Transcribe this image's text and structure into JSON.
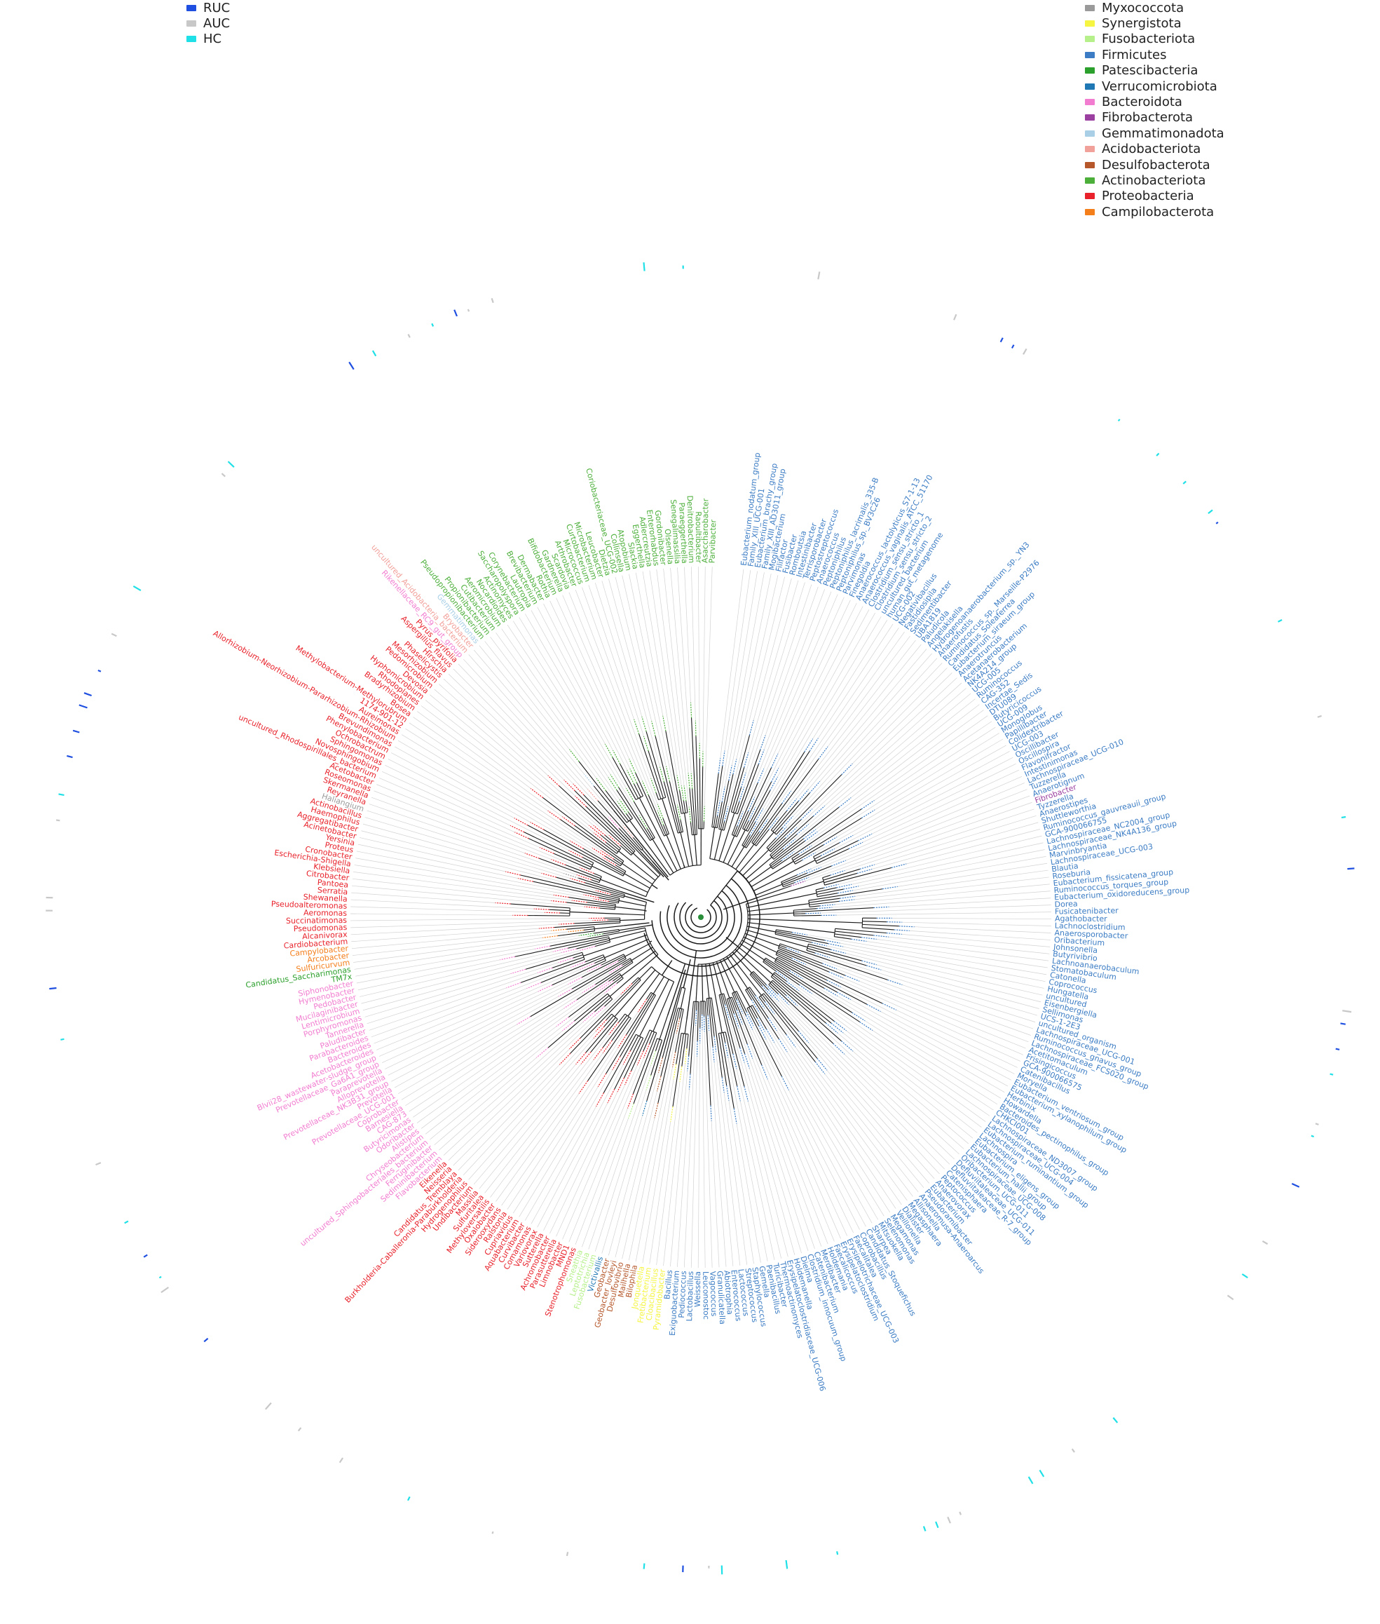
{
  "sample_legend": [
    {
      "label": "RUC",
      "color": "#1e4fe0"
    },
    {
      "label": "AUC",
      "color": "#c8c8c8"
    },
    {
      "label": "HC",
      "color": "#1ee0e6"
    }
  ],
  "phylum_legend": [
    {
      "label": "Myxococcota",
      "color": "#9a9a9a"
    },
    {
      "label": "Synergistota",
      "color": "#f5f542"
    },
    {
      "label": "Fusobacteriota",
      "color": "#b6f08a"
    },
    {
      "label": "Firmicutes",
      "color": "#3b7cc4"
    },
    {
      "label": "Patescibacteria",
      "color": "#2ca02c"
    },
    {
      "label": "Verrucomicrobiota",
      "color": "#1f77b4"
    },
    {
      "label": "Bacteroidota",
      "color": "#f27dd0"
    },
    {
      "label": "Fibrobacterota",
      "color": "#9b3fa0"
    },
    {
      "label": "Gemmatimonadota",
      "color": "#a9cfe6"
    },
    {
      "label": "Acidobacteriota",
      "color": "#f2a09a"
    },
    {
      "label": "Desulfobacterota",
      "color": "#b5572a"
    },
    {
      "label": "Actinobacteriota",
      "color": "#4caf3a"
    },
    {
      "label": "Proteobacteria",
      "color": "#e8212a"
    },
    {
      "label": "Campilobacterota",
      "color": "#f47e1a"
    }
  ],
  "taxa": [
    {
      "p": "Firmicutes",
      "names": [
        "Eubacterium_nodatum_group",
        "Family_XIII_UCG-001",
        "Eubacterium_brachy_group",
        "Family_XIII_AD3011_group",
        "Mogibacterium",
        "Filifactor",
        "Fusibacter",
        "Romboutsia",
        "Intestinibacter",
        "Terrisporobacter",
        "Peptostreptococcus",
        "Anaerococcus",
        "Peptoniphilus",
        "Peptoniphilus_lacrimalis_335-B",
        "Peptoniphilus_sp._BV3C26",
        "Parvimonas",
        "Finegoldia",
        "Anaerococcus_lactolyticus_S7-1-13",
        "Anaerococcus_vaginalis_ATCC_51170",
        "Clostridium_sensu_stricto_1",
        "Clostridium_sensu_stricto_2",
        "uncultured_bacterium",
        "human_gut_metagenome",
        "UCG-002",
        "Negativibacillus",
        "Fastidiosipila",
        "Sedimentibacter",
        "UBA1819",
        "Paludicola",
        "Angelakisella",
        "Hydrogenoanaerobacterium_sp._YN3",
        "Anaerofustis",
        "Ruminococcus_sp._Marseille-P2976",
        "Candidatus_Soleaferrea",
        "Eubacterium_siraeum_group",
        "Anaerotruncus",
        "Acetanaerobacterium",
        "NK4A214_group",
        "UCG-005",
        "Ruminococcus",
        "CAG-352",
        "Incertae_Sedis",
        "DTU089",
        "Butyricicoccus",
        "UCG-009",
        "Monoglobus",
        "Papillibacter",
        "Colidextribacter",
        "UCG-003",
        "Oscillibacter",
        "Oscillospira",
        "Flavonifractor",
        "Intestinimonas",
        "Lachnospiraceae_UCG-010",
        "Tuzzerella",
        "Anaerotignum"
      ]
    },
    {
      "p": "Fibrobacterota",
      "names": [
        "Fibrobacter"
      ]
    },
    {
      "p": "Firmicutes",
      "names": [
        "Tyzzerella",
        "Anaerostipes",
        "Shuttleworthia",
        "Ruminococcus_gauvreauii_group",
        "GCA-900066755",
        "Lachnospiraceae_NC2004_group",
        "Lachnospiraceae_NK4A136_group",
        "Marvinbryantia",
        "Lachnospiraceae_UCG-003",
        "Blautia",
        "Roseburia",
        "Eubacterium_fissicatena_group",
        "Ruminococcus_torques_group",
        "Eubacterium_oxidoreducens_group",
        "Dorea",
        "Fusicatenibacter",
        "Agathobacter",
        "Lachnoclostridium",
        "Anaerosporobacter",
        "Oribacterium",
        "Johnsonella",
        "Butyrivibrio",
        "Lachnoanaerobaculum",
        "Stomatobaculum",
        "Catonella",
        "Coprococcus",
        "Hungatella",
        "uncultured",
        "Eisenbergiella",
        "Sellimonas",
        "UCS-1-2E3",
        "uncultured_organism",
        "Lachnospiraceae_UCG-001",
        "Ruminococcus_gnavus_group",
        "Lachnospiraceae_FCS020_group",
        "Acetitomaculum",
        "Frisingicoccus",
        "GCA-900066575",
        "Catenibacillus",
        "Moryella",
        "Eubacterium_ventriosum_group",
        "Eubacterium_xylanophilum_group",
        "Herbinix",
        "Howardella",
        "Bacteroides_pectinophilus_group",
        "CHKCI001",
        "Lachnospiraceae_ND3007_group",
        "Lachnospiraceae_UCG-004",
        "Eubacterium_ruminantium_group",
        "Lachnospira",
        "Eubacterium_eligens_group",
        "Eubacterium_hallii_group",
        "Lachnospiraceae_UCG-008",
        "Oribacterium_UCG-011",
        "Defluviitaleaceae_UCG-011",
        "Defluviitaleaceae_R-7_group",
        "Catenisphaera",
        "Peptococcus",
        "Anaerovorax",
        "Eubacterium",
        "Pseudoramibacter",
        "Anaeromusa-Anaeroarcus",
        "Allisonella",
        "Megasphaera",
        "Dialister",
        "Veillonella",
        "Megamonas",
        "Selenomonas",
        "Mitsuokella",
        "Sharpea",
        "Candidatus_Stoquefichus",
        "Coprobacillus",
        "Faecalitalea",
        "Erysipelotrichaceae_UCG-003",
        "Erysipelatoclostridium",
        "Faecalicoccus",
        "Holdemania",
        "Merdibacter",
        "Catenibacterium",
        "Clostridium_innocuum_group",
        "Dielma",
        "Holdemanella",
        "Erysipelatoclostridiaceae_UCG-006",
        "Thermoactinomyces",
        "Turicibacter",
        "Paenibacillus",
        "Gemella",
        "Staphylococcus",
        "Streptococcus",
        "Lactococcus",
        "Enterococcus",
        "Abiotrophia",
        "Granulicatella",
        "Vagococcus",
        "Leuconostoc",
        "Weissella",
        "Lactobacillus",
        "Pediococcus",
        "Exiguobacterium",
        "Bacillus"
      ]
    },
    {
      "p": "Synergistota",
      "names": [
        "Pyramidobacter",
        "Cloacibacillus",
        "Fretibacterium",
        "Jonquetella"
      ]
    },
    {
      "p": "Desulfobacterota",
      "names": [
        "Bilophila",
        "Mailhella",
        "Desulfovibrio",
        "Geobacter_lovleyi",
        "Geobacter"
      ]
    },
    {
      "p": "Verrucomicrobiota",
      "names": [
        "Victivallis"
      ]
    },
    {
      "p": "Fusobacteriota",
      "names": [
        "Fusobacterium",
        "Leptotrichia",
        "Sneathia"
      ]
    },
    {
      "p": "Proteobacteria",
      "names": [
        "Stenotrophomonas",
        "MND1",
        "Limnobacter",
        "Parasutterella",
        "Achromobacter",
        "Sutterella",
        "Variovorax",
        "Comamonas",
        "Curvibacter",
        "Aquabacterium",
        "Cupriavidus",
        "Ralstonia",
        "Siderooxydans",
        "Oxalobacter",
        "Methyloversatilis",
        "Sulfuritalea",
        "Massilia",
        "Undibacterium",
        "Hydrogenophilus",
        "Burkholderia-Caballeronia-Paraburkholderia",
        "Candidatus_Tremblaya",
        "Neisseria",
        "Eikenella"
      ]
    },
    {
      "p": "Bacteroidota",
      "names": [
        "Flavobacterium",
        "Sediminibacterium",
        "Ferruginibacter",
        "uncultured_Sphingobacteriales_bacterium",
        "Chryseobacterium",
        "Alistipes",
        "Odoribacter",
        "Butyricimonas",
        "CAG-873",
        "Barnesiella",
        "Coprobacter",
        "Prevotellaceae_UCG-001",
        "Prevotella",
        "Prevotellaceae_NK3B31_group",
        "Alloprevotella",
        "Paraprevotella",
        "Prevotellaceae_Ga6A1_group",
        "Blvii28_wastewater-sludge_group",
        "Acetobacteroides",
        "Bacteroides",
        "Parabacteroides",
        "Paludibacter",
        "Tannerella",
        "Porphyromonas",
        "Lentimicrobium",
        "Mucilaginibacter",
        "Pedobacter",
        "Hymenobacter",
        "Siphonobacter"
      ]
    },
    {
      "p": "Patescibacteria",
      "names": [
        "TM7x",
        "Candidatus_Saccharimonas"
      ]
    },
    {
      "p": "Campilobacterota",
      "names": [
        "Sulfuricurvum",
        "Arcobacter",
        "Campylobacter"
      ]
    },
    {
      "p": "Proteobacteria",
      "names": [
        "Cardiobacterium",
        "Alcanivorax",
        "Pseudomonas",
        "Succinatimonas",
        "Aeromonas",
        "Pseudoalteromonas",
        "Shewanella",
        "Serratia",
        "Pantoea",
        "Citrobacter",
        "Klebsiella",
        "Escherichia-Shigella",
        "Cronobacter",
        "Proteus",
        "Yersinia",
        "Acinetobacter",
        "Aggregatibacter",
        "Haemophilus",
        "Actinobacillus"
      ]
    },
    {
      "p": "Myxococcota",
      "names": [
        "Haliangium"
      ]
    },
    {
      "p": "Proteobacteria",
      "names": [
        "Reyranella",
        "Skermanella",
        "Roseomonas",
        "Acetobacter",
        "uncultured_Rhodospirillales_bacterium",
        "Novosphingobium",
        "Sphingomonas",
        "Ochrobactrum",
        "Phenylobacterium",
        "Brevundimonas",
        "Allorhizobium-Neorhizobium-Pararhizobium-Rhizobium",
        "Aureimonas",
        "1174-901-12",
        "Methylobacterium-Methylorubrum",
        "Bosea",
        "Bradyrhizobium",
        "Rhodoplanes",
        "Hyphomicrobium",
        "Devosia",
        "Pedomicrobium",
        "Mesorhizobium",
        "Phaselicystis",
        "Hirschia",
        "Aspergillus_flavus",
        "Pyrus_pyrifolia"
      ]
    },
    {
      "p": "Bacteroidota",
      "names": [
        "Rikenellaceae_RC9_gut_group"
      ]
    },
    {
      "p": "Acidobacteriota",
      "names": [
        "uncultured_Acidobacteria_bacterium",
        "Bryobacter"
      ]
    },
    {
      "p": "Gemmatimonadota",
      "names": [
        "Gemmatimonas"
      ]
    },
    {
      "p": "Actinobacteriota",
      "names": [
        "Pseudopropionibacterium",
        "Propionibacterium",
        "Cutibacterium",
        "Aeromicrobium",
        "Nocardioides",
        "Actinomyces",
        "Saccharopolyspora",
        "Corynebacterium",
        "Lautropia",
        "Brevibacterium",
        "Dermabacter",
        "Rothia",
        "Bifidobacterium",
        "Gardnerella",
        "Scardovia",
        "Arthrobacter",
        "Micrococcus",
        "Curtobacterium",
        "Microbacterium",
        "Leucobacter",
        "Dietzia",
        "Coriobacteriaceae_UCG-002",
        "Collinsella",
        "Atopobium",
        "Slackia",
        "Eggerthella",
        "Adlercreutzia",
        "Enterorhabdus",
        "Gordonibacter",
        "Olsenella",
        "Senegalimassilia",
        "Paraeggerthella",
        "Denitrobacterium",
        "Raoultibacter",
        "Asaccharobacter",
        "Parvibacter"
      ]
    }
  ],
  "tree": {
    "start_angle_deg": -83,
    "sweep_deg": 356
  }
}
